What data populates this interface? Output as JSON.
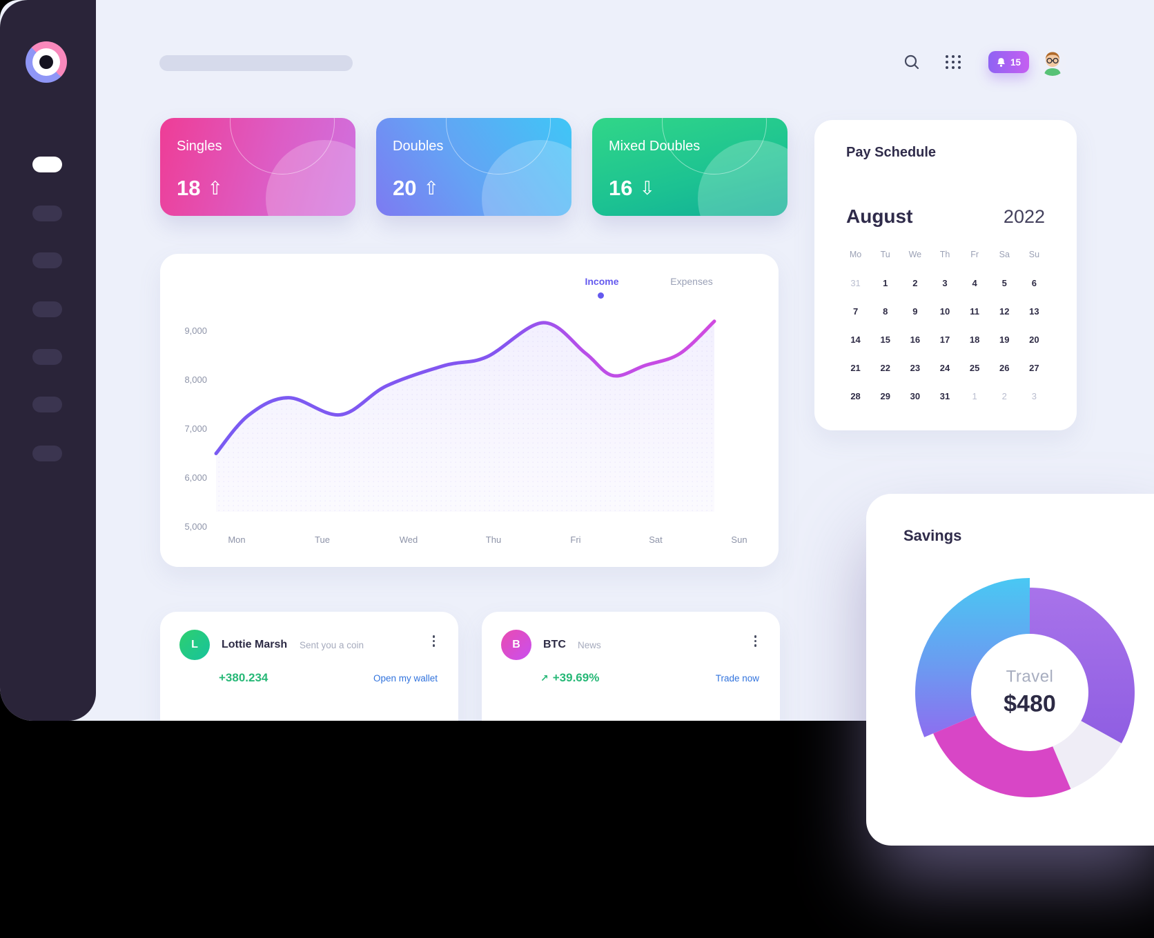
{
  "header": {
    "notification_count": "15"
  },
  "stat_cards": [
    {
      "label": "Singles",
      "value": "18",
      "trend": "up",
      "trend_glyph": "⇧",
      "accent": "#ee3d96"
    },
    {
      "label": "Doubles",
      "value": "20",
      "trend": "up",
      "trend_glyph": "⇧",
      "accent": "#54aef4"
    },
    {
      "label": "Mixed Doubles",
      "value": "16",
      "trend": "down",
      "trend_glyph": "⇩",
      "accent": "#1fc491"
    }
  ],
  "chart_data": [
    {
      "type": "line",
      "legend": [
        "Income",
        "Expenses"
      ],
      "active_series": "Income",
      "categories": [
        "Mon",
        "Tue",
        "Wed",
        "Thu",
        "Fri",
        "Sat",
        "Sun"
      ],
      "series": [
        {
          "name": "Income",
          "values": [
            6600,
            7450,
            8100,
            8950,
            8650,
            8400,
            9200
          ]
        }
      ],
      "y_ticks": [
        "9,000",
        "8,000",
        "7,000",
        "6,000",
        "5,000"
      ],
      "ylim": [
        5000,
        9500
      ],
      "grid": false,
      "legend_position": "top-right",
      "line_gradient": [
        "#7a5bf2",
        "#d04ae0"
      ],
      "curve_points": [
        [
          81,
          6500
        ],
        [
          128,
          7280
        ],
        [
          186,
          7640
        ],
        [
          261,
          7290
        ],
        [
          328,
          7880
        ],
        [
          413,
          8300
        ],
        [
          473,
          8470
        ],
        [
          555,
          9170
        ],
        [
          616,
          8550
        ],
        [
          656,
          8090
        ],
        [
          703,
          8300
        ],
        [
          753,
          8540
        ],
        [
          803,
          9200
        ]
      ]
    },
    {
      "type": "donut",
      "title": "Savings",
      "center_label": "Travel",
      "center_value": "$480",
      "segments": [
        {
          "name": "blue",
          "share": 31,
          "start": 247,
          "end": 360,
          "outer": 166,
          "fill": "url(#gBlue)",
          "color": "#49c7f3"
        },
        {
          "name": "purple",
          "share": 33,
          "start": 0,
          "end": 119,
          "outer": 152,
          "fill": "url(#gPurple)",
          "color": "#9c67e6"
        },
        {
          "name": "gray",
          "share": 11,
          "start": 119,
          "end": 157,
          "outer": 152,
          "fill": "#efedf6",
          "color": "#efedf6"
        },
        {
          "name": "pink",
          "share": 25,
          "start": 157,
          "end": 247,
          "outer": 152,
          "fill": "#d846c6",
          "color": "#d846c6"
        }
      ],
      "inner_radius": 85
    }
  ],
  "calendar": {
    "title": "Pay Schedule",
    "month": "August",
    "year": "2022",
    "weekdays": [
      "Mo",
      "Tu",
      "We",
      "Th",
      "Fr",
      "Sa",
      "Su"
    ],
    "days": [
      "31",
      "1",
      "2",
      "3",
      "4",
      "5",
      "6",
      "7",
      "8",
      "9",
      "10",
      "11",
      "12",
      "13",
      "14",
      "15",
      "16",
      "17",
      "18",
      "19",
      "20",
      "21",
      "22",
      "23",
      "24",
      "25",
      "26",
      "27",
      "28",
      "29",
      "30",
      "31",
      "1",
      "2",
      "3"
    ],
    "muted_indices": [
      0,
      32,
      33,
      34
    ]
  },
  "transactions": [
    {
      "initial": "L",
      "name": "Lottie Marsh",
      "subtitle": "Sent you a coin",
      "amount": "+380.234",
      "amount_arrow": "",
      "link": "Open my wallet"
    },
    {
      "initial": "B",
      "name": "BTC",
      "subtitle": "News",
      "amount": "+39.69%",
      "amount_arrow": "↗",
      "link": "Trade now"
    }
  ],
  "savings": {
    "title": "Savings",
    "center_label": "Travel",
    "center_value": "$480"
  },
  "colors": {
    "sidebar": "#2a2439",
    "app_bg": "#edf0fa",
    "income_accent": "#6459ee",
    "positive_green": "#27b877",
    "link_blue": "#3173dd",
    "notification_gradient": [
      "#8f63f3",
      "#c55ff1"
    ]
  }
}
